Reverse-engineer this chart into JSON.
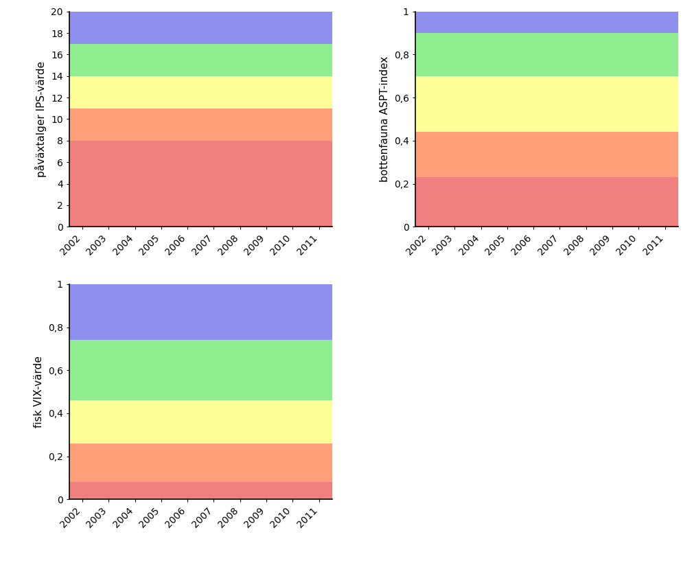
{
  "colors": [
    "#F08080",
    "#FFA07A",
    "#FFFF99",
    "#90EE90",
    "#9090EE"
  ],
  "years": [
    2002,
    2003,
    2004,
    2005,
    2006,
    2007,
    2008,
    2009,
    2010,
    2011
  ],
  "chart1": {
    "ylabel": "påväxtalger IPS-värde",
    "ylim": [
      0,
      20
    ],
    "yticks": [
      0,
      2,
      4,
      6,
      8,
      10,
      12,
      14,
      16,
      18,
      20
    ],
    "yticklabels": [
      "0",
      "2",
      "4",
      "6",
      "8",
      "10",
      "12",
      "14",
      "16",
      "18",
      "20"
    ],
    "bands": [
      0,
      8,
      11,
      14,
      17,
      20
    ]
  },
  "chart2": {
    "ylabel": "bottenfauna ASPT-index",
    "ylim": [
      0,
      1
    ],
    "yticks": [
      0,
      0.2,
      0.4,
      0.6,
      0.8,
      1.0
    ],
    "yticklabels": [
      "0",
      "0,2",
      "0,4",
      "0,6",
      "0,8",
      "1"
    ],
    "bands": [
      0,
      0.23,
      0.44,
      0.7,
      0.9,
      1.0
    ]
  },
  "chart3": {
    "ylabel": "fisk VIX-värde",
    "ylim": [
      0,
      1
    ],
    "yticks": [
      0,
      0.2,
      0.4,
      0.6,
      0.8,
      1.0
    ],
    "yticklabels": [
      "0",
      "0,2",
      "0,4",
      "0,6",
      "0,8",
      "1"
    ],
    "bands": [
      0,
      0.08,
      0.26,
      0.46,
      0.74,
      1.0
    ]
  },
  "xlabel_years": [
    "2002",
    "2003",
    "2004",
    "2005",
    "2006",
    "2007",
    "2008",
    "2009",
    "2010",
    "2011"
  ],
  "background_color": "#FFFFFF",
  "tick_fontsize": 10,
  "label_fontsize": 11
}
